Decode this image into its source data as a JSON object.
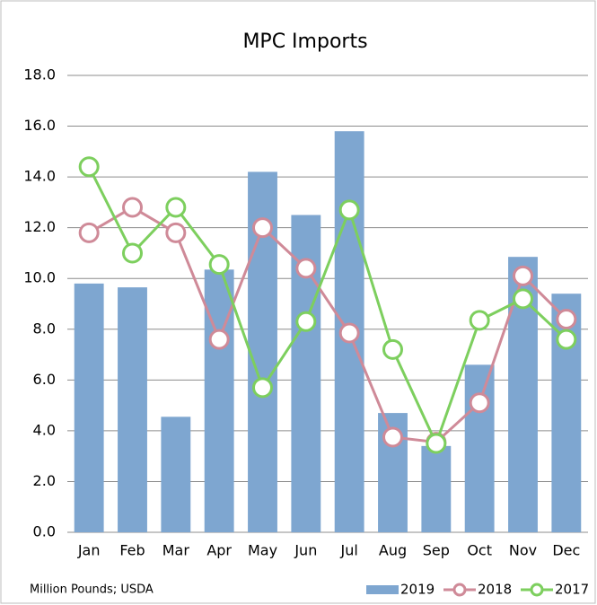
{
  "chart_data": {
    "type": "bar_line",
    "title": "MPC Imports",
    "note": "Million Pounds; USDA",
    "categories": [
      "Jan",
      "Feb",
      "Mar",
      "Apr",
      "May",
      "Jun",
      "Jul",
      "Aug",
      "Sep",
      "Oct",
      "Nov",
      "Dec"
    ],
    "series": [
      {
        "name": "2019",
        "type": "bar",
        "color": "#7ea6d0",
        "values": [
          9.8,
          9.65,
          4.55,
          10.35,
          14.2,
          12.5,
          15.8,
          4.7,
          3.4,
          6.6,
          10.85,
          9.4
        ]
      },
      {
        "name": "2018",
        "type": "line",
        "color": "#cf8a98",
        "values": [
          11.8,
          12.8,
          11.8,
          7.6,
          12.0,
          10.4,
          7.85,
          3.75,
          3.55,
          5.1,
          10.1,
          8.4
        ]
      },
      {
        "name": "2017",
        "type": "line",
        "color": "#7dcf5e",
        "values": [
          14.4,
          11.0,
          12.8,
          10.55,
          5.7,
          8.3,
          12.7,
          7.2,
          3.5,
          8.35,
          9.2,
          7.6
        ]
      }
    ],
    "ylim": [
      0,
      18
    ],
    "yticks": [
      {
        "value": 0,
        "label": "0.0"
      },
      {
        "value": 2,
        "label": "2.0"
      },
      {
        "value": 4,
        "label": "4.0"
      },
      {
        "value": 6,
        "label": "6.0"
      },
      {
        "value": 8,
        "label": "8.0"
      },
      {
        "value": 10,
        "label": "10.0"
      },
      {
        "value": 12,
        "label": "12.0"
      },
      {
        "value": 14,
        "label": "14.0"
      },
      {
        "value": 16,
        "label": "16.0"
      },
      {
        "value": 18,
        "label": "18.0"
      }
    ],
    "grid": true,
    "legend": "bottom-right"
  }
}
